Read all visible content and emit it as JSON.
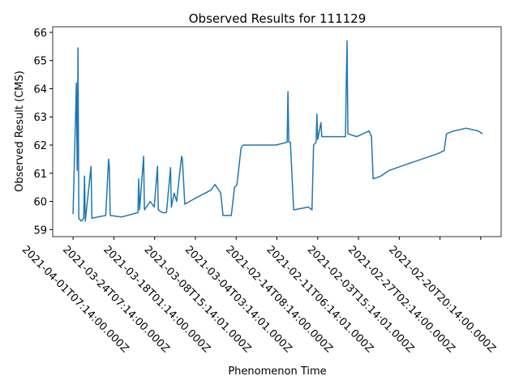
{
  "chart_data": {
    "type": "line",
    "title": "Observed Results for 111129",
    "x_label": "Phenomenon Time",
    "y_label": "Observed Result (CMS)",
    "x": [
      0,
      8,
      10,
      12,
      14,
      20,
      26,
      28,
      30,
      44,
      46,
      60,
      80,
      87,
      89,
      91,
      119,
      159,
      161,
      163,
      173,
      175,
      189,
      199,
      207,
      209,
      219,
      229,
      239,
      241,
      248,
      254,
      266,
      268,
      274,
      298,
      338,
      348,
      362,
      368,
      388,
      396,
      402,
      412,
      417,
      457,
      497,
      525,
      527,
      529,
      533,
      541,
      577,
      586,
      590,
      596,
      598,
      600,
      608,
      610,
      616,
      656,
      668,
      670,
      672,
      674,
      696,
      726,
      732,
      736,
      755,
      775,
      815,
      855,
      895,
      910,
      916,
      934,
      964,
      994,
      1004
    ],
    "series": [
      {
        "name": "Observed Result",
        "color": "#1f77b4",
        "values": [
          59.55,
          64.2,
          61.1,
          65.45,
          59.4,
          59.3,
          59.4,
          60.9,
          59.3,
          61.25,
          59.4,
          59.45,
          59.5,
          61.5,
          61.2,
          59.5,
          59.45,
          59.6,
          60.8,
          59.7,
          61.6,
          59.7,
          60.0,
          59.8,
          61.25,
          59.7,
          59.6,
          59.6,
          61.2,
          59.8,
          60.3,
          60.0,
          61.6,
          61.5,
          59.9,
          60.1,
          60.4,
          60.6,
          60.3,
          59.5,
          59.5,
          60.5,
          60.6,
          61.9,
          62.0,
          62.0,
          62.0,
          62.1,
          63.9,
          62.1,
          62.1,
          59.7,
          59.8,
          59.7,
          62.0,
          62.1,
          63.1,
          62.2,
          62.8,
          62.3,
          62.3,
          62.3,
          62.3,
          64.2,
          65.7,
          62.4,
          62.3,
          62.5,
          62.3,
          60.8,
          60.9,
          61.1,
          61.3,
          61.5,
          61.7,
          61.8,
          62.4,
          62.5,
          62.6,
          62.5,
          62.4
        ]
      }
    ],
    "xlim": [
      -50,
      1050
    ],
    "ylim": [
      58.75,
      66.2
    ],
    "xticks": [
      {
        "value": 0,
        "label": "2021-04-01T07:14:00.000Z"
      },
      {
        "value": 100,
        "label": "2021-03-24T07:14:00.000Z"
      },
      {
        "value": 200,
        "label": "2021-03-18T01:14:00.000Z"
      },
      {
        "value": 300,
        "label": "2021-03-08T15:14:01.000Z"
      },
      {
        "value": 400,
        "label": "2021-03-04T03:14:01.000Z"
      },
      {
        "value": 500,
        "label": "2021-02-14T08:14:00.000Z"
      },
      {
        "value": 600,
        "label": "2021-02-11T06:14:01.000Z"
      },
      {
        "value": 700,
        "label": "2021-02-03T15:14:01.000Z"
      },
      {
        "value": 800,
        "label": "2021-02-27T02:14:00.000Z"
      },
      {
        "value": 900,
        "label": "2021-02-20T20:14:00.000Z"
      },
      {
        "value": 1000,
        "label": null
      }
    ],
    "yticks": [
      59,
      60,
      61,
      62,
      63,
      64,
      65,
      66
    ]
  }
}
